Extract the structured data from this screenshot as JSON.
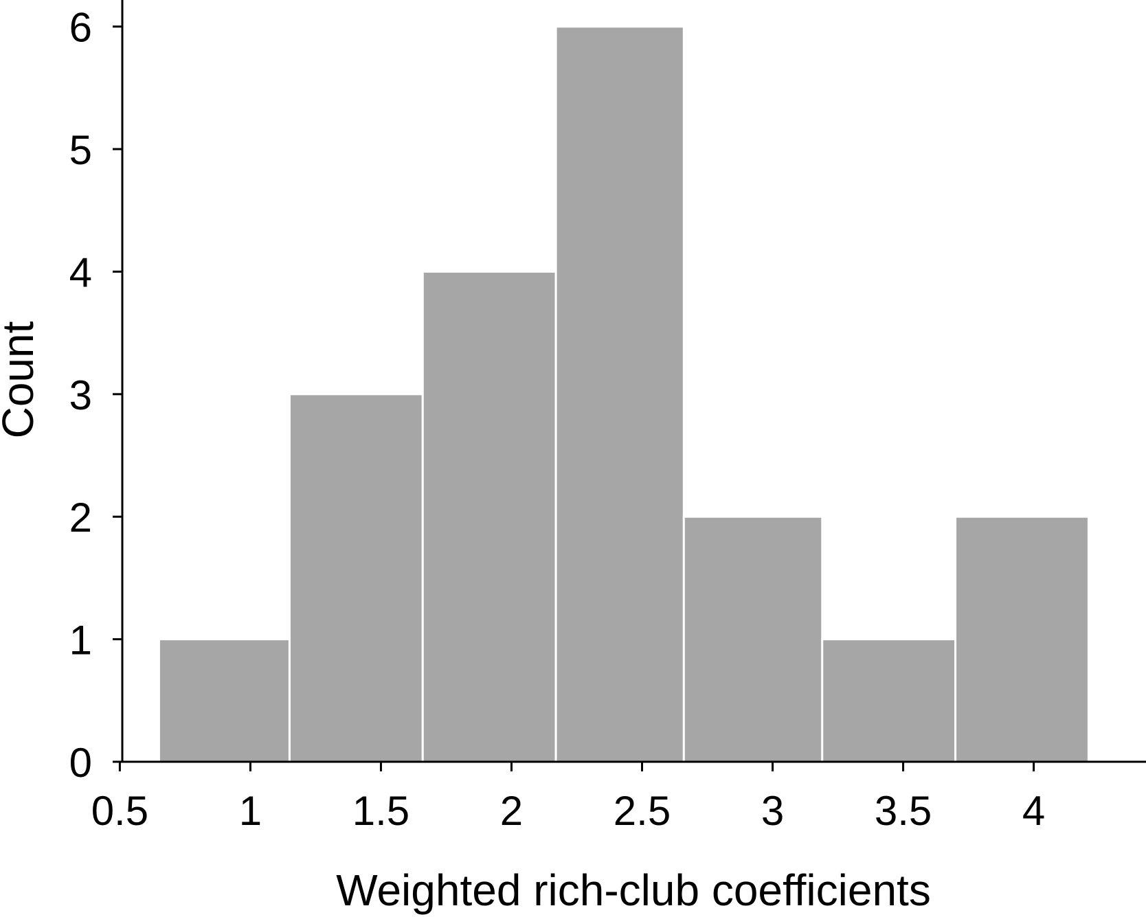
{
  "chart_data": {
    "type": "bar",
    "subtype": "histogram",
    "xlabel": "Weighted rich-club coefficients",
    "ylabel": "Count",
    "bins": [
      {
        "start": 0.65,
        "end": 1.15,
        "count": 1
      },
      {
        "start": 1.15,
        "end": 1.66,
        "count": 3
      },
      {
        "start": 1.66,
        "end": 2.17,
        "count": 4
      },
      {
        "start": 2.17,
        "end": 2.66,
        "count": 6
      },
      {
        "start": 2.66,
        "end": 3.19,
        "count": 2
      },
      {
        "start": 3.19,
        "end": 3.7,
        "count": 1
      },
      {
        "start": 3.7,
        "end": 4.21,
        "count": 2
      }
    ],
    "xlim": [
      0.47,
      4.43
    ],
    "ylim": [
      0,
      6.2
    ],
    "xticks": [
      0.5,
      1,
      1.5,
      2,
      2.5,
      3,
      3.5,
      4
    ],
    "xtick_labels": [
      "0.5",
      "1",
      "1.5",
      "2",
      "2.5",
      "3",
      "3.5",
      "4"
    ],
    "yticks": [
      0,
      1,
      2,
      3,
      4,
      5,
      6
    ],
    "ytick_labels": [
      "0",
      "1",
      "2",
      "3",
      "4",
      "5",
      "6"
    ],
    "grid": false,
    "legend": "none",
    "bar_color": "#a6a6a6",
    "bar_edge_color": "#ffffff",
    "axis_color": "#000000"
  }
}
